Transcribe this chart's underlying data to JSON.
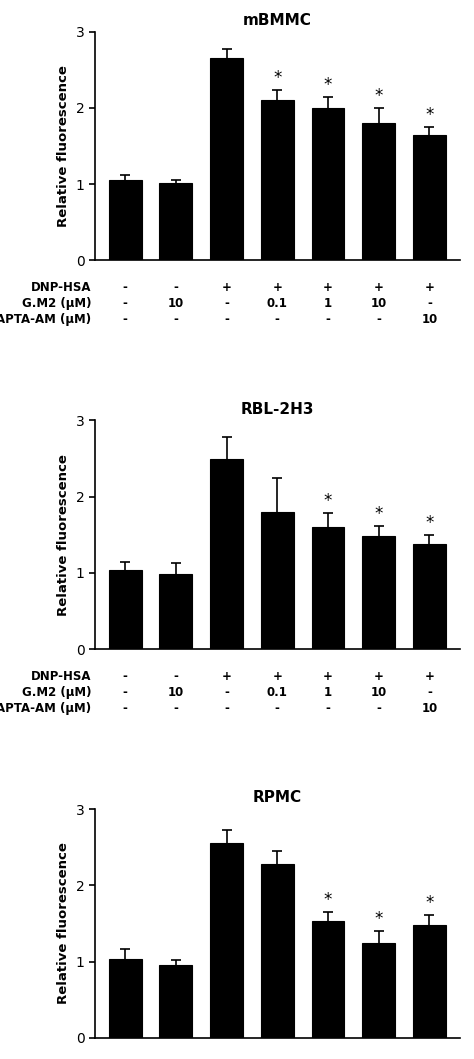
{
  "panels": [
    {
      "title": "mBMMC",
      "values": [
        1.05,
        1.01,
        2.65,
        2.1,
        2.0,
        1.8,
        1.65
      ],
      "errors": [
        0.07,
        0.05,
        0.13,
        0.13,
        0.15,
        0.2,
        0.1
      ],
      "sig": [
        false,
        false,
        false,
        true,
        true,
        true,
        true
      ]
    },
    {
      "title": "RBL-2H3",
      "values": [
        1.04,
        0.98,
        2.5,
        1.8,
        1.6,
        1.48,
        1.38
      ],
      "errors": [
        0.1,
        0.15,
        0.28,
        0.45,
        0.18,
        0.14,
        0.12
      ],
      "sig": [
        false,
        false,
        false,
        false,
        true,
        true,
        true
      ]
    },
    {
      "title": "RPMC",
      "values": [
        1.04,
        0.95,
        2.56,
        2.28,
        1.53,
        1.25,
        1.48
      ],
      "errors": [
        0.12,
        0.07,
        0.17,
        0.17,
        0.12,
        0.15,
        0.13
      ],
      "sig": [
        false,
        false,
        false,
        false,
        true,
        true,
        true
      ]
    }
  ],
  "x_labels": [
    [
      "-",
      "-",
      "+",
      "+",
      "+",
      "+",
      "+"
    ],
    [
      "-",
      "10",
      "-",
      "0.1",
      "1",
      "10",
      "-"
    ],
    [
      "-",
      "-",
      "-",
      "-",
      "-",
      "-",
      "10"
    ]
  ],
  "row_labels": [
    "DNP-HSA",
    "G.M2 (μM)",
    "BAPTA-AM (μM)"
  ],
  "ylabel": "Relative fluorescence",
  "ylim": [
    0,
    3
  ],
  "yticks": [
    0,
    1,
    2,
    3
  ],
  "bar_color": "#000000",
  "bar_width": 0.65,
  "sig_marker": "*",
  "background_color": "#ffffff",
  "title_fontsize": 11,
  "label_fontsize": 9.5,
  "tick_fontsize": 10,
  "row_label_fontsize": 8.5,
  "x_label_fontsize": 8.5,
  "sig_fontsize": 12
}
